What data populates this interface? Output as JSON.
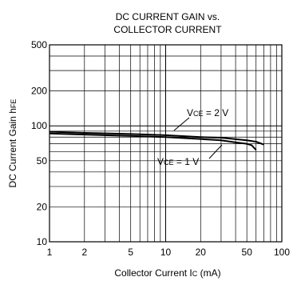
{
  "chart_data": {
    "type": "line",
    "title": [
      "DC CURRENT GAIN vs.",
      "COLLECTOR CURRENT"
    ],
    "xlabel": {
      "main": "Collector Current I",
      "sub": "C",
      "unit": " (mA)"
    },
    "ylabel": {
      "main": "DC Current Gain h",
      "sub": "FE"
    },
    "xscale": "log",
    "yscale": "log",
    "xlim": [
      1,
      100
    ],
    "ylim": [
      10,
      500
    ],
    "grid": true,
    "x_ticks": [
      {
        "value": 1,
        "label": "1"
      },
      {
        "value": 2,
        "label": "2"
      },
      {
        "value": 5,
        "label": "5"
      },
      {
        "value": 10,
        "label": "10"
      },
      {
        "value": 20,
        "label": "20"
      },
      {
        "value": 50,
        "label": "50"
      },
      {
        "value": 100,
        "label": "100"
      }
    ],
    "y_ticks": [
      {
        "value": 10,
        "label": "10"
      },
      {
        "value": 20,
        "label": "20"
      },
      {
        "value": 50,
        "label": "50"
      },
      {
        "value": 100,
        "label": "100"
      },
      {
        "value": 200,
        "label": "200"
      },
      {
        "value": 500,
        "label": "500"
      }
    ],
    "series": [
      {
        "name": "VCE = 2 V",
        "label": {
          "pre": "V",
          "sub": "CE",
          "post": " = 2 V"
        },
        "x": [
          1,
          2,
          5,
          10,
          20,
          30,
          50,
          60,
          70
        ],
        "y": [
          89,
          87,
          85,
          83,
          80,
          79,
          75,
          73,
          69
        ]
      },
      {
        "name": "VCE = 1 V",
        "label": {
          "pre": "V",
          "sub": "CE",
          "post": " = 1 V"
        },
        "x": [
          1,
          2,
          5,
          10,
          20,
          30,
          40,
          50,
          55,
          60
        ],
        "y": [
          86,
          84,
          82,
          80,
          77,
          75,
          72,
          70,
          68,
          62
        ]
      }
    ]
  }
}
